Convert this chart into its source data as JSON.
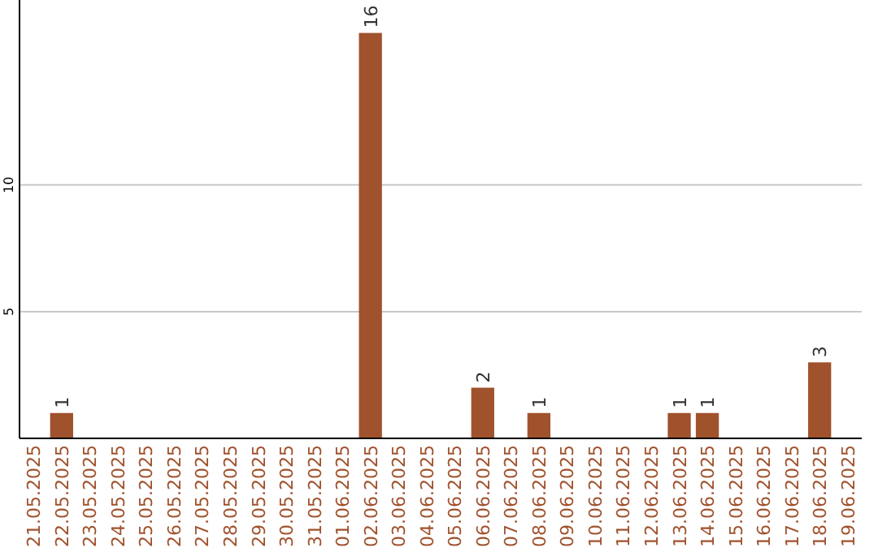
{
  "chart_data": {
    "type": "bar",
    "categories": [
      "21.05.2025",
      "22.05.2025",
      "23.05.2025",
      "24.05.2025",
      "25.05.2025",
      "26.05.2025",
      "27.05.2025",
      "28.05.2025",
      "29.05.2025",
      "30.05.2025",
      "31.05.2025",
      "01.06.2025",
      "02.06.2025",
      "03.06.2025",
      "04.06.2025",
      "05.06.2025",
      "06.06.2025",
      "07.06.2025",
      "08.06.2025",
      "09.06.2025",
      "10.06.2025",
      "11.06.2025",
      "12.06.2025",
      "13.06.2025",
      "14.06.2025",
      "15.06.2025",
      "16.06.2025",
      "17.06.2025",
      "18.06.2025",
      "19.06.2025"
    ],
    "values": [
      0,
      1,
      0,
      0,
      0,
      0,
      0,
      0,
      0,
      0,
      0,
      0,
      16,
      0,
      0,
      0,
      2,
      0,
      1,
      0,
      0,
      0,
      0,
      1,
      1,
      0,
      0,
      0,
      3,
      0
    ],
    "value_labels": [
      null,
      "1",
      null,
      null,
      null,
      null,
      null,
      null,
      null,
      null,
      null,
      null,
      "16",
      null,
      null,
      null,
      "2",
      null,
      "1",
      null,
      null,
      null,
      null,
      "1",
      "1",
      null,
      null,
      null,
      "3",
      null
    ],
    "color": "#a0522d",
    "ylim": [
      0,
      17.3
    ],
    "yticks": [
      5,
      10
    ],
    "grid": "y"
  }
}
